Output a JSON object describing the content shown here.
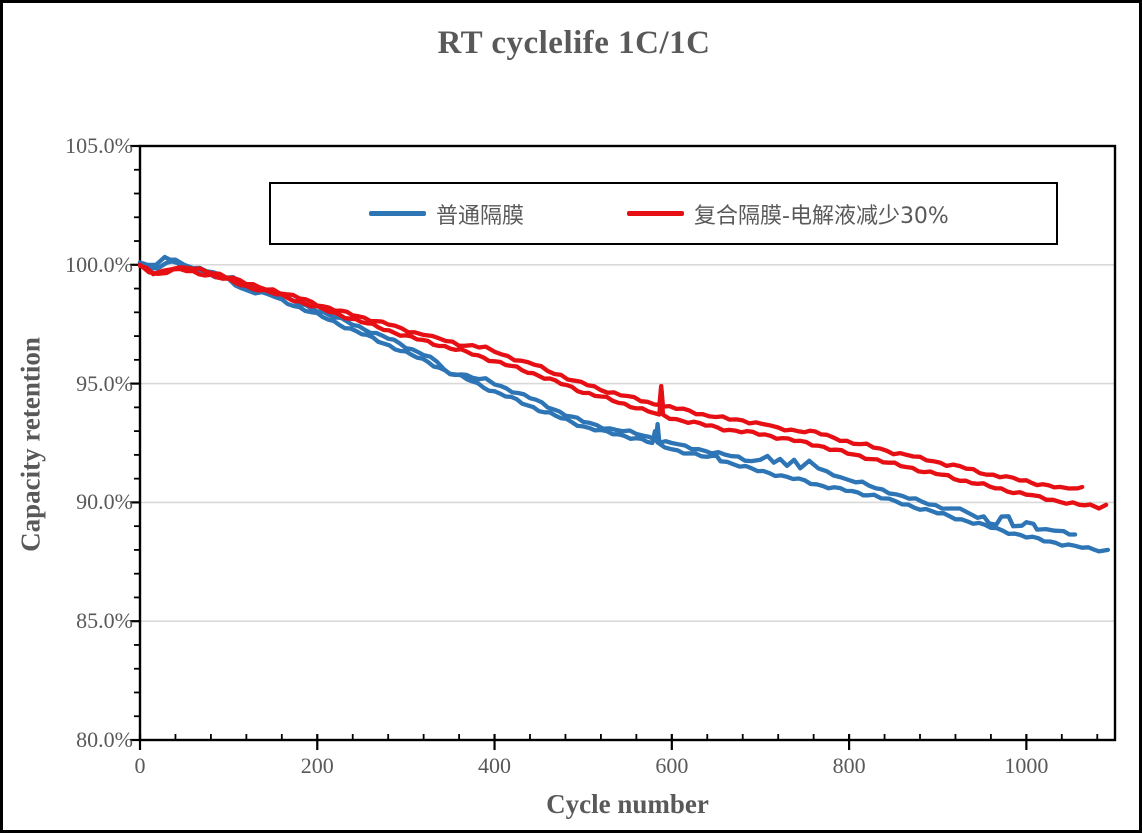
{
  "chart_data": {
    "type": "line",
    "title": "RT cyclelife 1C/1C",
    "xlabel": "Cycle number",
    "ylabel": "Capacity retention",
    "xlim": [
      0,
      1100
    ],
    "ylim": [
      80,
      105
    ],
    "grid": "horizontal-major-light-gray",
    "grid_color": "#d9d9d9",
    "axis_color": "#000000",
    "x_ticks": {
      "major_values": [
        0,
        200,
        400,
        600,
        800,
        1000
      ],
      "labels": [
        "0",
        "200",
        "400",
        "600",
        "800",
        "1000"
      ],
      "minor_step": 40
    },
    "y_ticks": {
      "major_values": [
        105,
        100,
        95,
        90,
        85,
        80
      ],
      "labels": [
        "105.0%",
        "100.0%",
        "95.0%",
        "90.0%",
        "85.0%",
        "80.0%"
      ],
      "minor_step": 1
    },
    "legend": {
      "position": "top-inside-boxed",
      "entries": [
        {
          "label": "普通隔膜",
          "color": "#2E75B6"
        },
        {
          "label": "复合隔膜-电解液减少30%",
          "color": "#E60F14"
        }
      ]
    },
    "series": [
      {
        "group": "普通隔膜",
        "id": "blue-upper",
        "color": "#2E75B6",
        "points": [
          [
            0,
            100.1
          ],
          [
            8,
            99.95
          ],
          [
            18,
            100.0
          ],
          [
            28,
            100.3
          ],
          [
            40,
            100.25
          ],
          [
            50,
            100.0
          ],
          [
            60,
            99.85
          ],
          [
            75,
            99.75
          ],
          [
            90,
            99.6
          ],
          [
            105,
            99.45
          ],
          [
            120,
            99.1
          ],
          [
            135,
            98.95
          ],
          [
            150,
            98.85
          ],
          [
            165,
            98.6
          ],
          [
            180,
            98.35
          ],
          [
            200,
            98.1
          ],
          [
            220,
            97.8
          ],
          [
            240,
            97.5
          ],
          [
            260,
            97.2
          ],
          [
            280,
            96.9
          ],
          [
            300,
            96.55
          ],
          [
            320,
            96.25
          ],
          [
            335,
            95.9
          ],
          [
            350,
            95.35
          ],
          [
            362,
            95.45
          ],
          [
            375,
            95.25
          ],
          [
            390,
            95.15
          ],
          [
            400,
            95.0
          ],
          [
            420,
            94.7
          ],
          [
            440,
            94.4
          ],
          [
            460,
            94.05
          ],
          [
            480,
            93.7
          ],
          [
            500,
            93.4
          ],
          [
            515,
            93.25
          ],
          [
            530,
            93.1
          ],
          [
            545,
            93.0
          ],
          [
            560,
            92.9
          ],
          [
            575,
            92.75
          ],
          [
            582,
            92.6
          ],
          [
            584,
            93.3
          ],
          [
            586,
            92.55
          ],
          [
            600,
            92.5
          ],
          [
            615,
            92.35
          ],
          [
            630,
            92.25
          ],
          [
            645,
            92.1
          ],
          [
            660,
            92.0
          ],
          [
            675,
            91.9
          ],
          [
            690,
            91.75
          ],
          [
            700,
            91.8
          ],
          [
            708,
            91.95
          ],
          [
            715,
            91.6
          ],
          [
            722,
            91.85
          ],
          [
            730,
            91.55
          ],
          [
            738,
            91.8
          ],
          [
            745,
            91.5
          ],
          [
            755,
            91.7
          ],
          [
            765,
            91.45
          ],
          [
            775,
            91.25
          ],
          [
            790,
            91.1
          ],
          [
            800,
            90.95
          ],
          [
            815,
            90.8
          ],
          [
            830,
            90.6
          ],
          [
            845,
            90.45
          ],
          [
            860,
            90.25
          ],
          [
            875,
            90.1
          ],
          [
            890,
            89.95
          ],
          [
            905,
            89.8
          ],
          [
            915,
            89.7
          ],
          [
            925,
            89.75
          ],
          [
            935,
            89.5
          ],
          [
            945,
            89.4
          ],
          [
            952,
            89.45
          ],
          [
            958,
            89.1
          ],
          [
            966,
            89.1
          ],
          [
            972,
            89.4
          ],
          [
            980,
            89.35
          ],
          [
            985,
            89.0
          ],
          [
            995,
            89.0
          ],
          [
            1000,
            89.15
          ],
          [
            1008,
            89.1
          ],
          [
            1012,
            88.9
          ],
          [
            1022,
            88.85
          ],
          [
            1032,
            88.8
          ],
          [
            1042,
            88.75
          ],
          [
            1055,
            88.65
          ]
        ]
      },
      {
        "group": "普通隔膜",
        "id": "blue-lower",
        "color": "#2E75B6",
        "points": [
          [
            0,
            100.05
          ],
          [
            10,
            99.9
          ],
          [
            20,
            99.85
          ],
          [
            30,
            100.1
          ],
          [
            42,
            100.05
          ],
          [
            55,
            99.85
          ],
          [
            70,
            99.7
          ],
          [
            85,
            99.5
          ],
          [
            100,
            99.35
          ],
          [
            115,
            99.0
          ],
          [
            130,
            98.85
          ],
          [
            145,
            98.75
          ],
          [
            160,
            98.5
          ],
          [
            180,
            98.2
          ],
          [
            200,
            97.9
          ],
          [
            225,
            97.5
          ],
          [
            250,
            97.1
          ],
          [
            275,
            96.7
          ],
          [
            300,
            96.3
          ],
          [
            325,
            95.9
          ],
          [
            350,
            95.45
          ],
          [
            375,
            95.1
          ],
          [
            400,
            94.65
          ],
          [
            425,
            94.3
          ],
          [
            450,
            93.9
          ],
          [
            475,
            93.55
          ],
          [
            500,
            93.2
          ],
          [
            520,
            93.0
          ],
          [
            540,
            92.85
          ],
          [
            560,
            92.7
          ],
          [
            578,
            92.5
          ],
          [
            581,
            93.0
          ],
          [
            584,
            92.45
          ],
          [
            600,
            92.25
          ],
          [
            620,
            92.05
          ],
          [
            640,
            91.9
          ],
          [
            650,
            92.0
          ],
          [
            655,
            91.8
          ],
          [
            670,
            91.6
          ],
          [
            690,
            91.4
          ],
          [
            710,
            91.25
          ],
          [
            730,
            91.05
          ],
          [
            750,
            90.9
          ],
          [
            770,
            90.7
          ],
          [
            790,
            90.55
          ],
          [
            810,
            90.4
          ],
          [
            828,
            90.3
          ],
          [
            845,
            90.1
          ],
          [
            860,
            89.95
          ],
          [
            880,
            89.75
          ],
          [
            900,
            89.55
          ],
          [
            920,
            89.35
          ],
          [
            940,
            89.15
          ],
          [
            960,
            88.95
          ],
          [
            980,
            88.75
          ],
          [
            1000,
            88.55
          ],
          [
            1020,
            88.4
          ],
          [
            1040,
            88.25
          ],
          [
            1055,
            88.15
          ],
          [
            1070,
            88.05
          ],
          [
            1082,
            88.0
          ],
          [
            1092,
            88.0
          ]
        ]
      },
      {
        "group": "复合隔膜-电解液减少30%",
        "id": "red-upper",
        "color": "#E60F14",
        "points": [
          [
            0,
            100.0
          ],
          [
            8,
            99.8
          ],
          [
            15,
            99.6
          ],
          [
            25,
            99.7
          ],
          [
            35,
            99.85
          ],
          [
            45,
            99.9
          ],
          [
            60,
            99.85
          ],
          [
            75,
            99.7
          ],
          [
            90,
            99.6
          ],
          [
            105,
            99.45
          ],
          [
            120,
            99.2
          ],
          [
            135,
            99.05
          ],
          [
            150,
            98.95
          ],
          [
            165,
            98.75
          ],
          [
            180,
            98.6
          ],
          [
            200,
            98.35
          ],
          [
            220,
            98.1
          ],
          [
            240,
            97.9
          ],
          [
            260,
            97.7
          ],
          [
            280,
            97.5
          ],
          [
            295,
            97.3
          ],
          [
            310,
            97.15
          ],
          [
            320,
            97.1
          ],
          [
            330,
            96.95
          ],
          [
            345,
            96.8
          ],
          [
            360,
            96.65
          ],
          [
            375,
            96.6
          ],
          [
            390,
            96.5
          ],
          [
            400,
            96.35
          ],
          [
            415,
            96.15
          ],
          [
            430,
            95.95
          ],
          [
            445,
            95.8
          ],
          [
            460,
            95.55
          ],
          [
            475,
            95.35
          ],
          [
            490,
            95.1
          ],
          [
            505,
            94.95
          ],
          [
            520,
            94.75
          ],
          [
            535,
            94.6
          ],
          [
            550,
            94.45
          ],
          [
            565,
            94.3
          ],
          [
            580,
            94.15
          ],
          [
            586,
            94.1
          ],
          [
            588,
            94.9
          ],
          [
            590,
            94.05
          ],
          [
            605,
            93.95
          ],
          [
            620,
            93.85
          ],
          [
            635,
            93.7
          ],
          [
            650,
            93.6
          ],
          [
            665,
            93.5
          ],
          [
            680,
            93.45
          ],
          [
            695,
            93.35
          ],
          [
            710,
            93.25
          ],
          [
            720,
            93.1
          ],
          [
            735,
            93.05
          ],
          [
            750,
            93.0
          ],
          [
            762,
            92.95
          ],
          [
            775,
            92.8
          ],
          [
            790,
            92.65
          ],
          [
            805,
            92.5
          ],
          [
            820,
            92.4
          ],
          [
            835,
            92.25
          ],
          [
            850,
            92.1
          ],
          [
            865,
            92.0
          ],
          [
            880,
            91.85
          ],
          [
            895,
            91.75
          ],
          [
            910,
            91.6
          ],
          [
            925,
            91.5
          ],
          [
            940,
            91.35
          ],
          [
            955,
            91.2
          ],
          [
            970,
            91.1
          ],
          [
            985,
            91.0
          ],
          [
            1000,
            90.9
          ],
          [
            1012,
            90.8
          ],
          [
            1025,
            90.7
          ],
          [
            1038,
            90.6
          ],
          [
            1048,
            90.6
          ],
          [
            1058,
            90.6
          ],
          [
            1063,
            90.65
          ]
        ]
      },
      {
        "group": "复合隔膜-电解液减少30%",
        "id": "red-lower",
        "color": "#E60F14",
        "points": [
          [
            0,
            99.95
          ],
          [
            10,
            99.75
          ],
          [
            20,
            99.6
          ],
          [
            30,
            99.7
          ],
          [
            45,
            99.8
          ],
          [
            60,
            99.7
          ],
          [
            80,
            99.55
          ],
          [
            100,
            99.35
          ],
          [
            120,
            99.1
          ],
          [
            140,
            98.9
          ],
          [
            160,
            98.7
          ],
          [
            180,
            98.45
          ],
          [
            200,
            98.2
          ],
          [
            225,
            97.9
          ],
          [
            250,
            97.6
          ],
          [
            275,
            97.3
          ],
          [
            300,
            97.0
          ],
          [
            325,
            96.75
          ],
          [
            350,
            96.5
          ],
          [
            375,
            96.25
          ],
          [
            400,
            95.95
          ],
          [
            425,
            95.65
          ],
          [
            450,
            95.35
          ],
          [
            475,
            95.0
          ],
          [
            500,
            94.65
          ],
          [
            520,
            94.45
          ],
          [
            540,
            94.2
          ],
          [
            560,
            94.0
          ],
          [
            580,
            93.75
          ],
          [
            586,
            93.7
          ],
          [
            588,
            94.85
          ],
          [
            590,
            93.65
          ],
          [
            605,
            93.5
          ],
          [
            625,
            93.35
          ],
          [
            645,
            93.2
          ],
          [
            665,
            93.05
          ],
          [
            685,
            92.95
          ],
          [
            705,
            92.85
          ],
          [
            725,
            92.7
          ],
          [
            745,
            92.55
          ],
          [
            765,
            92.4
          ],
          [
            785,
            92.2
          ],
          [
            805,
            92.0
          ],
          [
            825,
            91.85
          ],
          [
            845,
            91.65
          ],
          [
            865,
            91.5
          ],
          [
            885,
            91.3
          ],
          [
            905,
            91.15
          ],
          [
            925,
            90.95
          ],
          [
            945,
            90.8
          ],
          [
            965,
            90.6
          ],
          [
            985,
            90.45
          ],
          [
            1000,
            90.35
          ],
          [
            1015,
            90.2
          ],
          [
            1030,
            90.1
          ],
          [
            1045,
            90.0
          ],
          [
            1060,
            89.9
          ],
          [
            1072,
            89.85
          ],
          [
            1082,
            89.8
          ],
          [
            1090,
            89.9
          ]
        ]
      }
    ]
  },
  "colors": {
    "text": "#595959",
    "grid": "#d9d9d9",
    "axis": "#000000",
    "blue_series": "#2E75B6",
    "red_series": "#E60F14"
  }
}
